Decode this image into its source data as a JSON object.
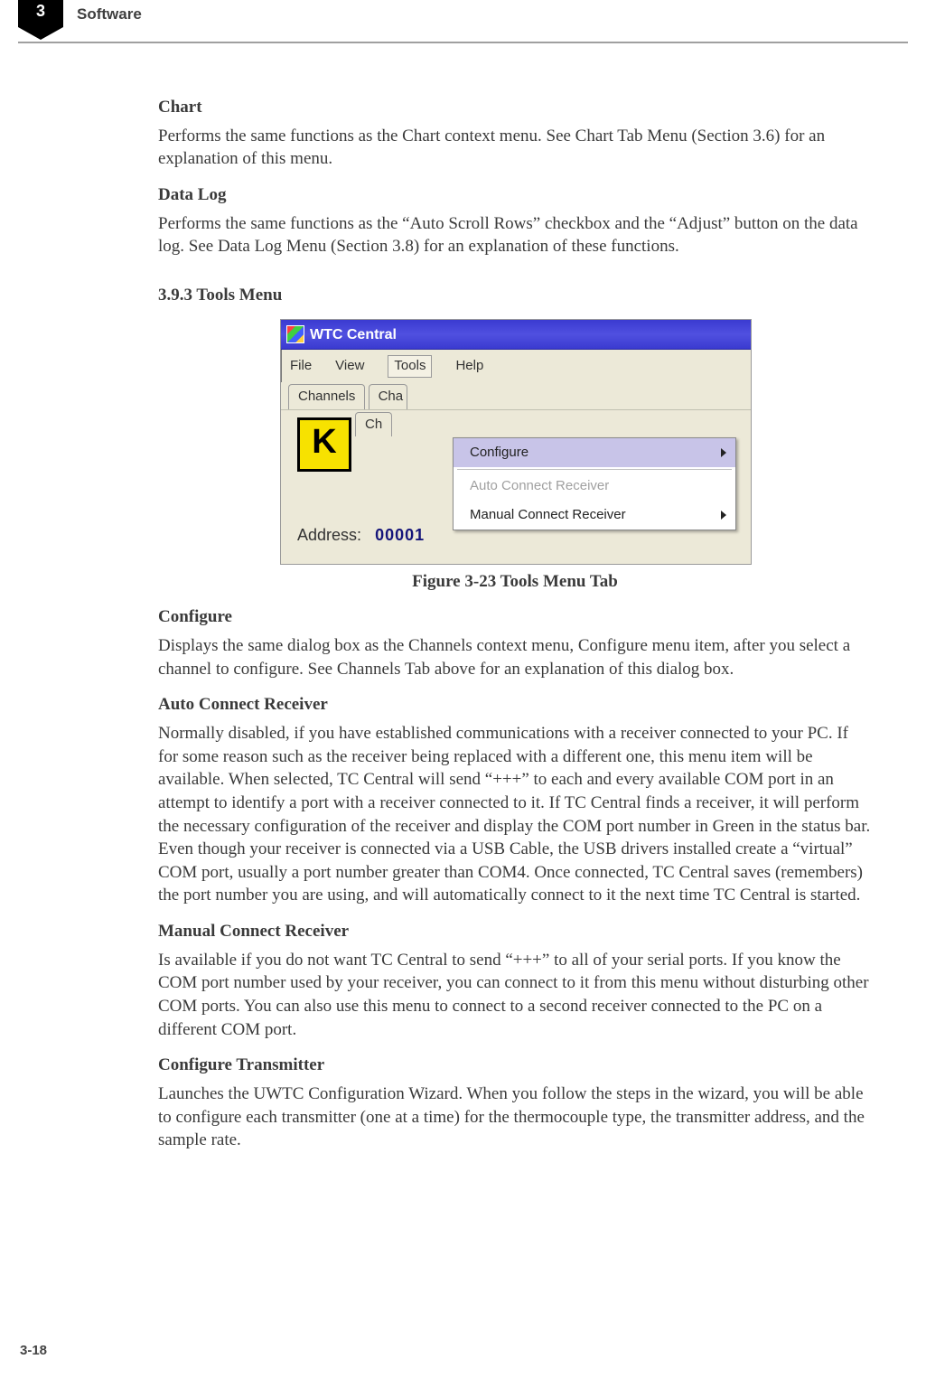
{
  "header": {
    "chapter_num": "3",
    "chapter_title": "Software"
  },
  "page_number": "3-18",
  "sections": {
    "chart": {
      "title": "Chart",
      "body": "Performs the same functions as the Chart context menu. See Chart Tab Menu (Section 3.6) for an explanation of this menu."
    },
    "datalog": {
      "title": "Data Log",
      "body": "Performs the same functions as the “Auto Scroll Rows” checkbox and the “Adjust” button on the data log.  See Data Log Menu (Section 3.8) for an explanation of these functions."
    },
    "tools": {
      "title": "3.9.3 Tools Menu",
      "figcaption": "Figure 3-23 Tools Menu Tab"
    },
    "configure": {
      "title": "Configure",
      "body": "Displays the same dialog box as the Channels context menu, Configure menu item, after you select a channel to configure. See Channels Tab above for an explanation of this dialog box."
    },
    "autoconn": {
      "title": "Auto Connect Receiver",
      "body": "Normally disabled, if you have established communications with a receiver connected to your PC. If for some reason such as the receiver being replaced with a different one, this menu item will be available. When selected, TC Central will send “+++” to each and every available COM port in an attempt to identify a port with a receiver connected to it. If TC Central finds a receiver, it will perform the necessary configuration of the receiver and display the COM port number in Green in the status bar. Even though your receiver is connected via a USB Cable, the USB drivers installed create a “virtual” COM port, usually a port number greater than COM4. Once connected, TC Central saves (remembers) the port number you are using, and will automatically connect to it the next time TC Central is started."
    },
    "manconn": {
      "title": "Manual Connect Receiver",
      "body": "Is available if you do not want TC Central to send “+++” to all of your serial ports. If you know the COM port number used by your receiver, you can connect to it from this menu without disturbing other COM ports. You can also use this menu to connect to a second receiver connected to the PC on a different COM port."
    },
    "conftx": {
      "title": "Configure Transmitter",
      "body": "Launches the UWTC Configuration Wizard. When you follow the steps in the wizard, you will be able to configure each transmitter (one at a time) for the thermocouple type, the transmitter address, and the sample rate."
    }
  },
  "screenshot": {
    "window_title": "WTC Central",
    "menubar": {
      "file": "File",
      "view": "View",
      "tools": "Tools",
      "help": "Help"
    },
    "tabs": {
      "channels": "Channels",
      "chart_cut": "Cha",
      "ch_cut": "Ch"
    },
    "k_letter": "K",
    "address_label": "Address:",
    "address_value": "00001",
    "dropdown": {
      "configure": "Configure",
      "auto": "Auto Connect Receiver",
      "manual": "Manual Connect Receiver"
    }
  }
}
